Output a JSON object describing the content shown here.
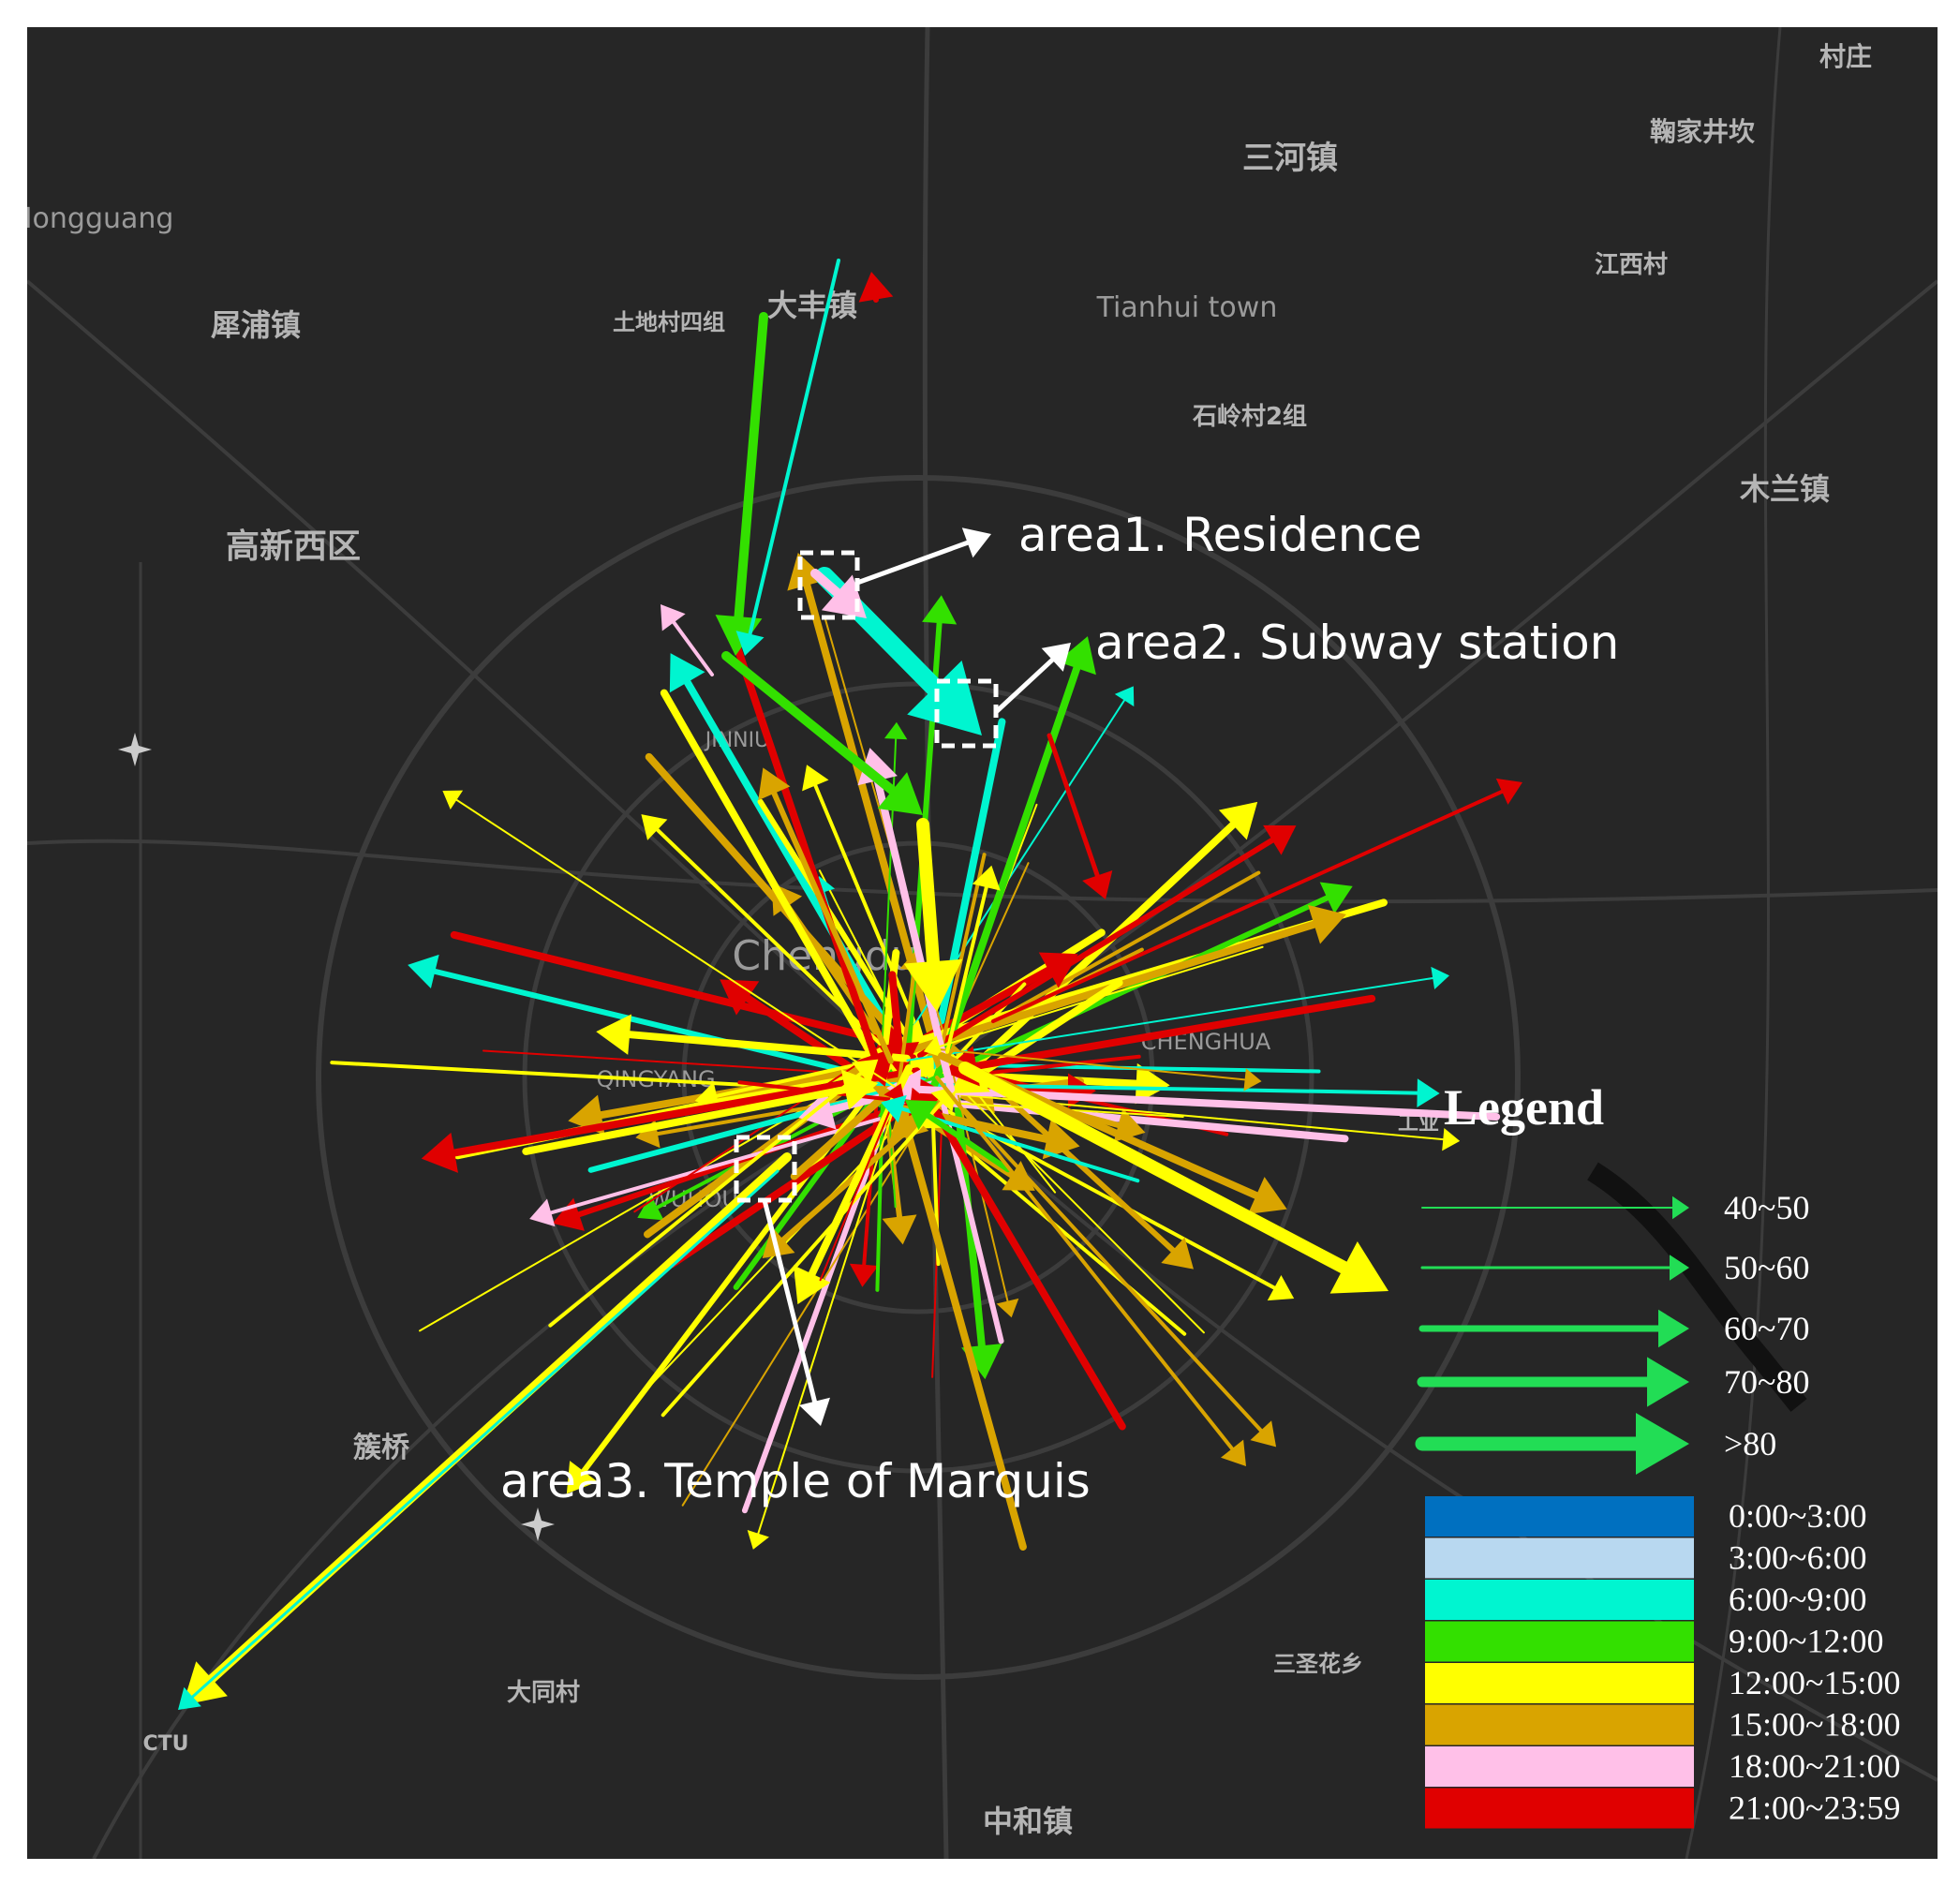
{
  "map": {
    "place_labels": [
      "村庄",
      "鞠家井坎",
      "三河镇",
      "Hongguang",
      "犀浦镇",
      "土地村四组",
      "大丰镇",
      "Tianhui town",
      "江西村",
      "石岭村2组",
      "木兰镇",
      "高新西区",
      "JINNIU",
      "Chengdu",
      "CHENGHUA",
      "QINGYANG",
      "WUHOU",
      "工业",
      "簇桥",
      "CTU",
      "大同村",
      "三圣花乡",
      "中和镇"
    ]
  },
  "annotations": [
    "area1. Residence",
    "area2. Subway station",
    "area3. Temple of Marquis"
  ],
  "legend": {
    "title": "Legend",
    "flow_sizes": [
      "40~50",
      "50~60",
      "60~70",
      "70~80",
      ">80"
    ],
    "flow_color": "#22dd55",
    "time_periods": [
      {
        "label": "0:00~3:00",
        "color": "#0070c0"
      },
      {
        "label": "3:00~6:00",
        "color": "#b8d8f0"
      },
      {
        "label": "6:00~9:00",
        "color": "#00f5d0"
      },
      {
        "label": "9:00~12:00",
        "color": "#33e000"
      },
      {
        "label": "12:00~15:00",
        "color": "#ffff00"
      },
      {
        "label": "15:00~18:00",
        "color": "#d9a400"
      },
      {
        "label": "18:00~21:00",
        "color": "#ffc0e8"
      },
      {
        "label": "21:00~23:59",
        "color": "#e00000"
      }
    ]
  }
}
